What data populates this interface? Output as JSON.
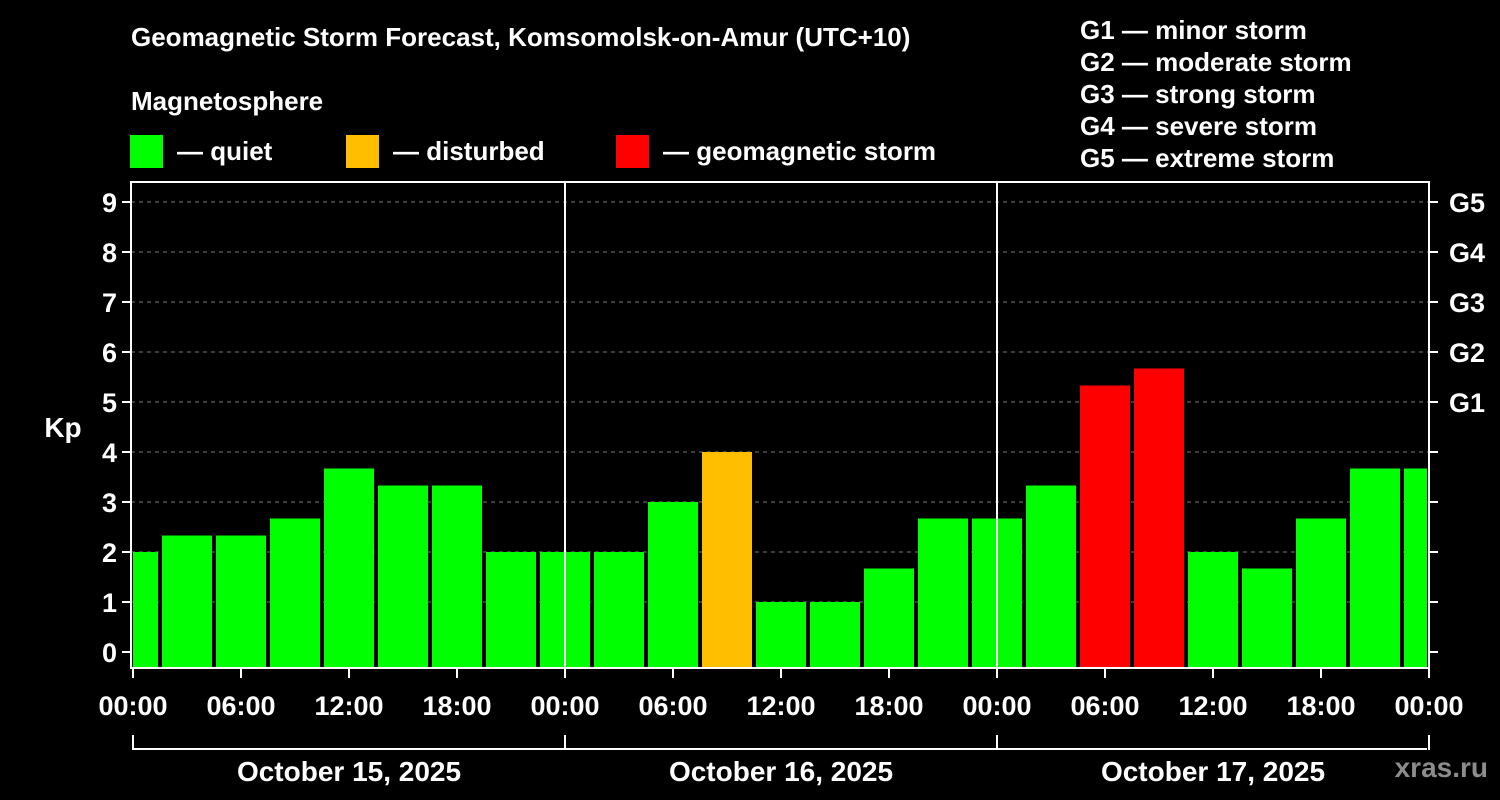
{
  "chart_data": {
    "type": "bar",
    "title": "Geomagnetic Storm Forecast, Komsomolsk-on-Amur (UTC+10)",
    "subtitle": "Magnetosphere",
    "ylabel": "Kp",
    "ylim": [
      0,
      9
    ],
    "yticks": [
      "0",
      "1",
      "2",
      "3",
      "4",
      "5",
      "6",
      "7",
      "8",
      "9"
    ],
    "right_ticks": [
      {
        "kp": 5,
        "label": "G1"
      },
      {
        "kp": 6,
        "label": "G2"
      },
      {
        "kp": 7,
        "label": "G3"
      },
      {
        "kp": 8,
        "label": "G4"
      },
      {
        "kp": 9,
        "label": "G5"
      }
    ],
    "xticks": [
      "00:00",
      "06:00",
      "12:00",
      "18:00",
      "00:00",
      "06:00",
      "12:00",
      "18:00",
      "00:00",
      "06:00",
      "12:00",
      "18:00",
      "00:00"
    ],
    "days": [
      "October 15, 2025",
      "October 16, 2025",
      "October 17, 2025"
    ],
    "values": [
      2.0,
      2.33,
      2.33,
      2.67,
      3.67,
      3.33,
      3.33,
      2.0,
      2.0,
      2.0,
      3.0,
      4.0,
      1.0,
      1.0,
      1.67,
      2.67,
      2.67,
      3.33,
      5.33,
      5.67,
      2.0,
      1.67,
      2.67,
      3.67,
      3.67
    ],
    "levels": [
      "quiet",
      "quiet",
      "quiet",
      "quiet",
      "quiet",
      "quiet",
      "quiet",
      "quiet",
      "quiet",
      "quiet",
      "quiet",
      "disturbed",
      "quiet",
      "quiet",
      "quiet",
      "quiet",
      "quiet",
      "quiet",
      "storm",
      "storm",
      "quiet",
      "quiet",
      "quiet",
      "quiet",
      "quiet"
    ],
    "grid": true
  },
  "legend": [
    {
      "key": "quiet",
      "label": "— quiet",
      "color": "#00ff00"
    },
    {
      "key": "disturbed",
      "label": "— disturbed",
      "color": "#ffbf00"
    },
    {
      "key": "storm",
      "label": "— geomagnetic storm",
      "color": "#ff0000"
    }
  ],
  "storm_scale": [
    "G1 — minor storm",
    "G2 — moderate storm",
    "G3 — strong storm",
    "G4 — severe storm",
    "G5 — extreme storm"
  ],
  "credit": "xras.ru"
}
